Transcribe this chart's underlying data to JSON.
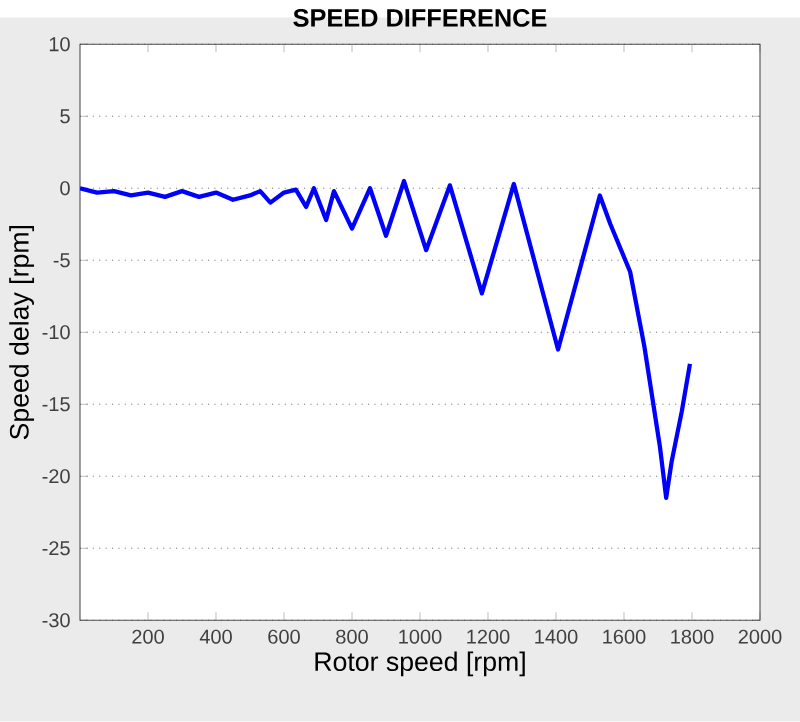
{
  "chart_data": {
    "type": "line",
    "title": "SPEED DIFFERENCE",
    "xlabel": "Rotor speed [rpm]",
    "ylabel": "Speed delay [rpm]",
    "x": [
      0,
      50,
      100,
      150,
      200,
      250,
      300,
      350,
      400,
      450,
      500,
      530,
      560,
      600,
      635,
      665,
      688,
      724,
      747,
      800,
      853,
      900,
      953,
      1018,
      1088,
      1182,
      1276,
      1406,
      1529,
      1560,
      1618,
      1660,
      1706,
      1724,
      1740,
      1770,
      1794
    ],
    "series": [
      {
        "color": "#0000ff",
        "values": [
          0,
          -0.3,
          -0.2,
          -0.5,
          -0.3,
          -0.6,
          -0.2,
          -0.6,
          -0.3,
          -0.8,
          -0.5,
          -0.2,
          -1.0,
          -0.3,
          -0.1,
          -1.3,
          0,
          -2.2,
          -0.2,
          -2.8,
          0,
          -3.3,
          0.5,
          -4.3,
          0.2,
          -7.3,
          0.3,
          -11.2,
          -0.5,
          -2.5,
          -5.8,
          -11,
          -18,
          -21.5,
          -19,
          -15.5,
          -12.2
        ]
      }
    ],
    "xlim": [
      0,
      2000
    ],
    "ylim": [
      -30,
      10
    ],
    "xticks": [
      200,
      400,
      600,
      800,
      1000,
      1200,
      1400,
      1600,
      1800,
      2000
    ],
    "yticks": [
      -30,
      -25,
      -20,
      -15,
      -10,
      -5,
      0,
      5,
      10
    ],
    "grid": "y",
    "line_style": "solid",
    "marker": "none"
  }
}
